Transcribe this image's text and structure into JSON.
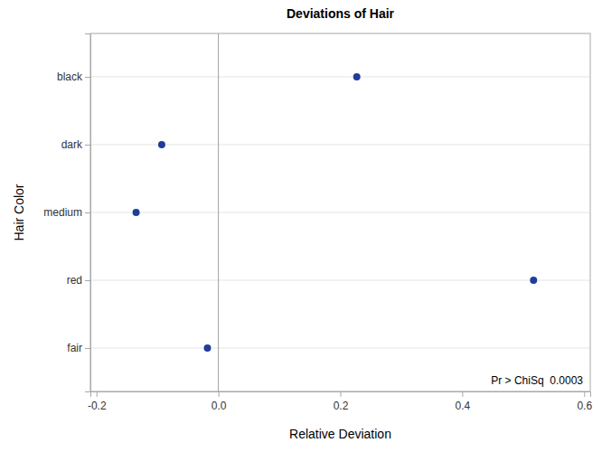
{
  "chart_data": {
    "type": "scatter",
    "orientation": "horizontal",
    "title": "Deviations of Hair",
    "x_label": "Relative Deviation",
    "y_label": "Hair Color",
    "categories": [
      "black",
      "dark",
      "medium",
      "red",
      "fair"
    ],
    "values": [
      0.227,
      -0.093,
      -0.135,
      0.517,
      -0.018
    ],
    "color": "#1f3d99",
    "marker": "circle",
    "xlim": [
      -0.21,
      0.61
    ],
    "xticks": [
      -0.2,
      {
        "value": 0,
        "label": "0.0"
      },
      0.2,
      0.4,
      0.6
    ],
    "reference_line": 0,
    "grid": true,
    "annotation": "Pr > ChiSq  0.0003"
  }
}
